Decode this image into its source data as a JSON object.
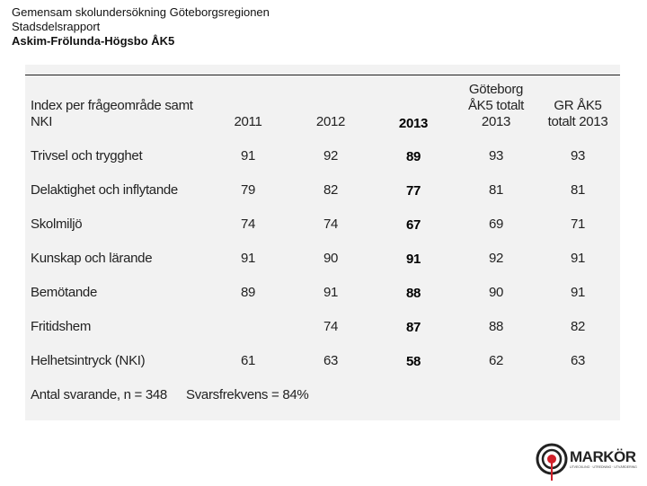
{
  "header": {
    "line1": "Gemensam skolundersökning Göteborgsregionen",
    "line2": "Stadsdelsrapport",
    "line3": "Askim-Frölunda-Högsbo ÅK5"
  },
  "table": {
    "columns": {
      "label_line1": "Index per frågeområde samt",
      "label_line2": "NKI",
      "y2011": "2011",
      "y2012": "2012",
      "y2013": "2013",
      "gbg_line1": "Göteborg",
      "gbg_line2": "ÅK5 totalt",
      "gbg_line3": "2013",
      "gr_line1": "GR ÅK5",
      "gr_line2": "totalt 2013"
    },
    "rows": [
      {
        "label": "Trivsel och trygghet",
        "y2011": "91",
        "y2012": "92",
        "y2013": "89",
        "gbg": "93",
        "gr": "93"
      },
      {
        "label": "Delaktighet och inflytande",
        "y2011": "79",
        "y2012": "82",
        "y2013": "77",
        "gbg": "81",
        "gr": "81"
      },
      {
        "label": "Skolmiljö",
        "y2011": "74",
        "y2012": "74",
        "y2013": "67",
        "gbg": "69",
        "gr": "71"
      },
      {
        "label": "Kunskap och lärande",
        "y2011": "91",
        "y2012": "90",
        "y2013": "91",
        "gbg": "92",
        "gr": "91"
      },
      {
        "label": "Bemötande",
        "y2011": "89",
        "y2012": "91",
        "y2013": "88",
        "gbg": "90",
        "gr": "91"
      },
      {
        "label": "Fritidshem",
        "y2011": "",
        "y2012": "74",
        "y2013": "87",
        "gbg": "88",
        "gr": "82"
      },
      {
        "label": "Helhetsintryck (NKI)",
        "y2011": "61",
        "y2012": "63",
        "y2013": "58",
        "gbg": "62",
        "gr": "63"
      }
    ],
    "footer": {
      "respondents": "Antal svarande, n = 348",
      "response_rate": "Svarsfrekvens = 84%"
    }
  },
  "logo": {
    "text": "MARKÖR",
    "tagline": "UTVECKLING · UTREDNING · UTVÄRDERING",
    "accent": "#d0202a"
  }
}
